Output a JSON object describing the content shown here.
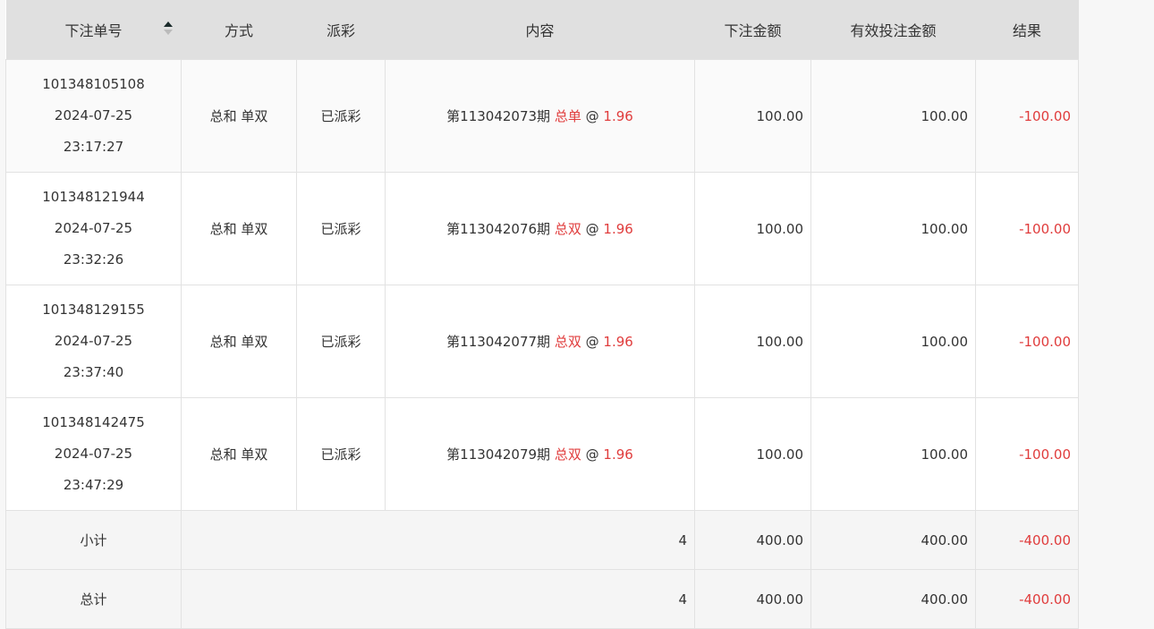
{
  "headers": [
    "下注单号",
    "方式",
    "派彩",
    "内容",
    "下注金额",
    "有效投注金额",
    "结果"
  ],
  "rows": [
    {
      "id": "101348105108",
      "date": "2024-07-25",
      "time": "23:17:27",
      "method": "总和 单双",
      "status": "已派彩",
      "period": "第113042073期",
      "pick": "总单",
      "at": "@",
      "odds": "1.96",
      "amount": "100.00",
      "valid": "100.00",
      "result": "-100.00"
    },
    {
      "id": "101348121944",
      "date": "2024-07-25",
      "time": "23:32:26",
      "method": "总和 单双",
      "status": "已派彩",
      "period": "第113042076期",
      "pick": "总双",
      "at": "@",
      "odds": "1.96",
      "amount": "100.00",
      "valid": "100.00",
      "result": "-100.00"
    },
    {
      "id": "101348129155",
      "date": "2024-07-25",
      "time": "23:37:40",
      "method": "总和 单双",
      "status": "已派彩",
      "period": "第113042077期",
      "pick": "总双",
      "at": "@",
      "odds": "1.96",
      "amount": "100.00",
      "valid": "100.00",
      "result": "-100.00"
    },
    {
      "id": "101348142475",
      "date": "2024-07-25",
      "time": "23:47:29",
      "method": "总和 单双",
      "status": "已派彩",
      "period": "第113042079期",
      "pick": "总双",
      "at": "@",
      "odds": "1.96",
      "amount": "100.00",
      "valid": "100.00",
      "result": "-100.00"
    }
  ],
  "subtotal": {
    "label": "小计",
    "count": "4",
    "amount": "400.00",
    "valid": "400.00",
    "result": "-400.00"
  },
  "total": {
    "label": "总计",
    "count": "4",
    "amount": "400.00",
    "valid": "400.00",
    "result": "-400.00"
  },
  "colors": {
    "negative": "#e03c3c",
    "header_bg": "#e0e0e0"
  }
}
